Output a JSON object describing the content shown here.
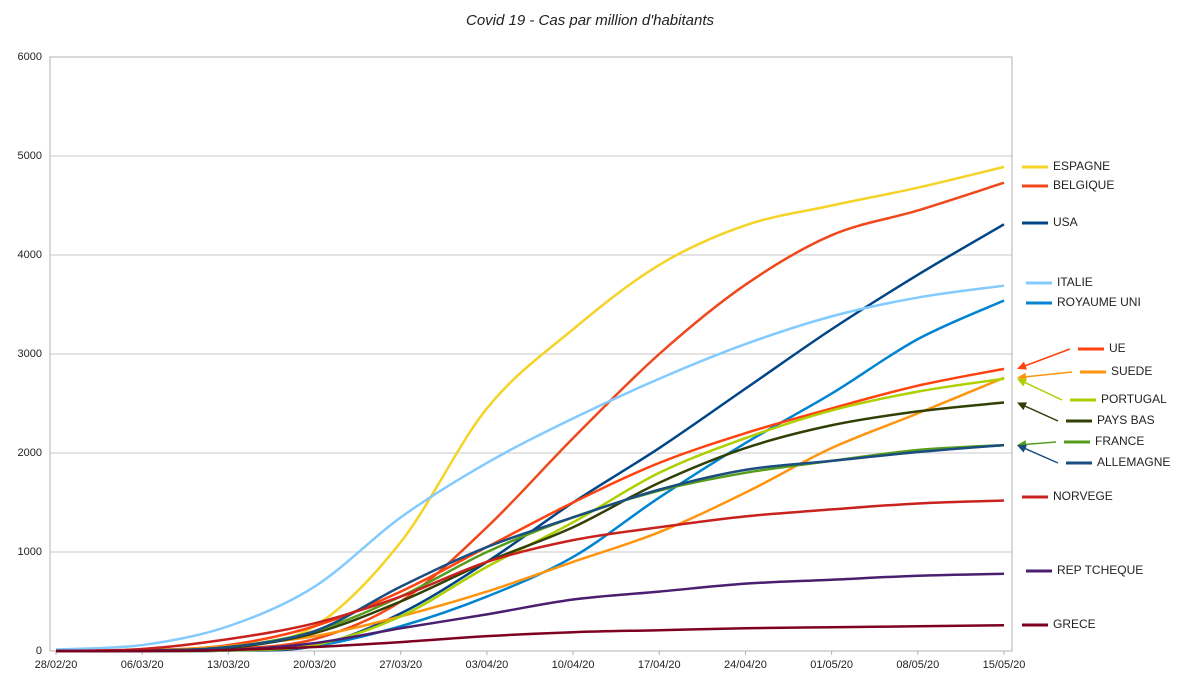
{
  "chart_data": {
    "type": "line",
    "title": "Covid 19 - Cas par million d'habitants",
    "categories": [
      "28/02/20",
      "06/03/20",
      "13/03/20",
      "20/03/20",
      "27/03/20",
      "03/04/20",
      "10/04/20",
      "17/04/20",
      "24/04/20",
      "01/05/20",
      "08/05/20",
      "15/05/20"
    ],
    "ylim": [
      0,
      6000
    ],
    "yticks": [
      0,
      1000,
      2000,
      3000,
      4000,
      5000,
      6000
    ],
    "grid": true,
    "legend": "right",
    "series": [
      {
        "name": "ESPAGNE",
        "color": "#f5d327",
        "values": [
          0,
          0,
          30,
          250,
          1100,
          2450,
          3250,
          3900,
          4300,
          4500,
          4680,
          4890
        ]
      },
      {
        "name": "BELGIQUE",
        "color": "#f0481c",
        "values": [
          0,
          0,
          20,
          120,
          500,
          1250,
          2150,
          3000,
          3700,
          4200,
          4450,
          4730
        ]
      },
      {
        "name": "USA",
        "color": "#004586",
        "values": [
          0,
          0,
          5,
          50,
          380,
          900,
          1500,
          2050,
          2650,
          3250,
          3800,
          4310
        ]
      },
      {
        "name": "ITALIE",
        "color": "#83caff",
        "values": [
          15,
          60,
          250,
          650,
          1350,
          1900,
          2350,
          2750,
          3100,
          3380,
          3570,
          3690
        ]
      },
      {
        "name": "ROYAUME UNI",
        "color": "#0084d1",
        "values": [
          0,
          0,
          5,
          50,
          250,
          550,
          950,
          1550,
          2100,
          2600,
          3150,
          3540
        ]
      },
      {
        "name": "UE",
        "color": "#ff420e",
        "values": [
          0,
          5,
          60,
          250,
          600,
          1050,
          1500,
          1900,
          2200,
          2450,
          2680,
          2850
        ]
      },
      {
        "name": "SUEDE",
        "color": "#ff950e",
        "values": [
          0,
          5,
          50,
          150,
          350,
          600,
          900,
          1200,
          1600,
          2050,
          2400,
          2760
        ]
      },
      {
        "name": "PORTUGAL",
        "color": "#aecf00",
        "values": [
          0,
          0,
          5,
          60,
          350,
          850,
          1300,
          1800,
          2150,
          2430,
          2620,
          2750
        ]
      },
      {
        "name": "PAYS BAS",
        "color": "#314004",
        "values": [
          0,
          0,
          30,
          180,
          500,
          900,
          1250,
          1700,
          2050,
          2280,
          2420,
          2510
        ]
      },
      {
        "name": "FRANCE",
        "color": "#579d1c",
        "values": [
          0,
          3,
          40,
          200,
          550,
          1000,
          1350,
          1620,
          1800,
          1920,
          2030,
          2080
        ]
      },
      {
        "name": "ALLEMAGNE",
        "color": "#1a4d80",
        "values": [
          0,
          5,
          40,
          200,
          650,
          1050,
          1350,
          1630,
          1830,
          1920,
          2010,
          2080
        ]
      },
      {
        "name": "NORVEGE",
        "color": "#c9211e",
        "values": [
          0,
          20,
          120,
          280,
          550,
          900,
          1120,
          1250,
          1360,
          1430,
          1490,
          1520
        ]
      },
      {
        "name": "REP TCHEQUE",
        "color": "#4b1f6f",
        "values": [
          0,
          0,
          10,
          80,
          230,
          370,
          520,
          600,
          680,
          720,
          760,
          780
        ]
      },
      {
        "name": "GRECE",
        "color": "#7e0021",
        "values": [
          0,
          0,
          10,
          40,
          90,
          150,
          190,
          210,
          230,
          240,
          250,
          260
        ]
      }
    ]
  }
}
